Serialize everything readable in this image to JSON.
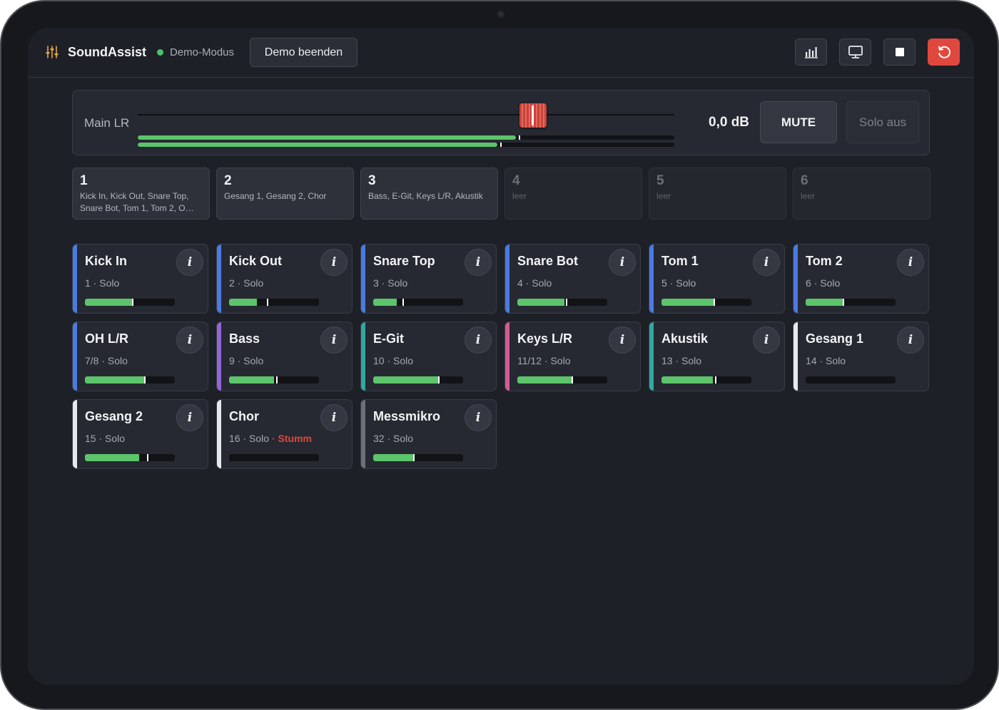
{
  "header": {
    "app_title": "SoundAssist",
    "demo_status": "Demo-Modus",
    "demo_end_label": "Demo beenden",
    "buttons": [
      {
        "icon": "bar-chart-icon"
      },
      {
        "icon": "monitor-icon"
      },
      {
        "icon": "stop-icon"
      },
      {
        "icon": "reset-icon"
      }
    ]
  },
  "main": {
    "label": "Main LR",
    "level": "0,0 dB",
    "fader_position": 0.737,
    "meters": [
      {
        "level": 0.705,
        "peak": 0.712
      },
      {
        "level": 0.67,
        "peak": 0.677
      }
    ],
    "mute_label": "MUTE",
    "solo_label": "Solo aus"
  },
  "groups": [
    {
      "num": "1",
      "members": "Kick In, Kick Out, Snare Top, Snare Bot, Tom 1, Tom 2, O…",
      "empty": false
    },
    {
      "num": "2",
      "members": "Gesang 1, Gesang 2, Chor",
      "empty": false
    },
    {
      "num": "3",
      "members": "Bass, E-Git, Keys L/R, Akustik",
      "empty": false
    },
    {
      "num": "4",
      "members": "leer",
      "empty": true
    },
    {
      "num": "5",
      "members": "leer",
      "empty": true
    },
    {
      "num": "6",
      "members": "leer",
      "empty": true
    }
  ],
  "colors": {
    "drums": "#4a7be0",
    "bass": "#9266d6",
    "guitar": "#2fa9a2",
    "keys": "#d45b93",
    "vocal": "#e8e9ec",
    "measure": "#6c707a",
    "meter": "#5cc46b",
    "danger": "#e0483e"
  },
  "channels": [
    {
      "name": "Kick In",
      "number": "1",
      "mode": "Solo",
      "muted": "",
      "color": "#4a7be0",
      "level": 0.53,
      "peak": 0.53,
      "info": "i"
    },
    {
      "name": "Kick Out",
      "number": "2",
      "mode": "Solo",
      "muted": "",
      "color": "#4a7be0",
      "level": 0.31,
      "peak": 0.43,
      "info": "i"
    },
    {
      "name": "Snare Top",
      "number": "3",
      "mode": "Solo",
      "muted": "",
      "color": "#4a7be0",
      "level": 0.26,
      "peak": 0.33,
      "info": "i"
    },
    {
      "name": "Snare Bot",
      "number": "4",
      "mode": "Solo",
      "muted": "",
      "color": "#4a7be0",
      "level": 0.52,
      "peak": 0.55,
      "info": "i"
    },
    {
      "name": "Tom 1",
      "number": "5",
      "mode": "Solo",
      "muted": "",
      "color": "#4a7be0",
      "level": 0.59,
      "peak": 0.59,
      "info": "i"
    },
    {
      "name": "Tom 2",
      "number": "6",
      "mode": "Solo",
      "muted": "",
      "color": "#4a7be0",
      "level": 0.42,
      "peak": 0.42,
      "info": "i"
    },
    {
      "name": "OH L/R",
      "number": "7/8",
      "mode": "Solo",
      "muted": "",
      "color": "#4a7be0",
      "level": 0.66,
      "peak": 0.67,
      "info": "i"
    },
    {
      "name": "Bass",
      "number": "9",
      "mode": "Solo",
      "muted": "",
      "color": "#9266d6",
      "level": 0.5,
      "peak": 0.53,
      "info": "i"
    },
    {
      "name": "E-Git",
      "number": "10",
      "mode": "Solo",
      "muted": "",
      "color": "#2fa9a2",
      "level": 0.72,
      "peak": 0.73,
      "info": "i"
    },
    {
      "name": "Keys L/R",
      "number": "11/12",
      "mode": "Solo",
      "muted": "",
      "color": "#d45b93",
      "level": 0.61,
      "peak": 0.61,
      "info": "i"
    },
    {
      "name": "Akustik",
      "number": "13",
      "mode": "Solo",
      "muted": "",
      "color": "#2fa9a2",
      "level": 0.57,
      "peak": 0.6,
      "info": "i"
    },
    {
      "name": "Gesang 1",
      "number": "14",
      "mode": "Solo",
      "muted": "",
      "color": "#e8e9ec",
      "level": 0,
      "peak": -1,
      "info": "i"
    },
    {
      "name": "Gesang 2",
      "number": "15",
      "mode": "Solo",
      "muted": "",
      "color": "#e8e9ec",
      "level": 0.6,
      "peak": 0.7,
      "info": "i"
    },
    {
      "name": "Chor",
      "number": "16",
      "mode": "Solo",
      "muted": "Stumm",
      "color": "#e8e9ec",
      "level": 0,
      "peak": -1,
      "info": "i"
    },
    {
      "name": "Messmikro",
      "number": "32",
      "mode": "Solo",
      "muted": "",
      "color": "#6c707a",
      "level": 0.45,
      "peak": 0.45,
      "info": "i"
    }
  ]
}
